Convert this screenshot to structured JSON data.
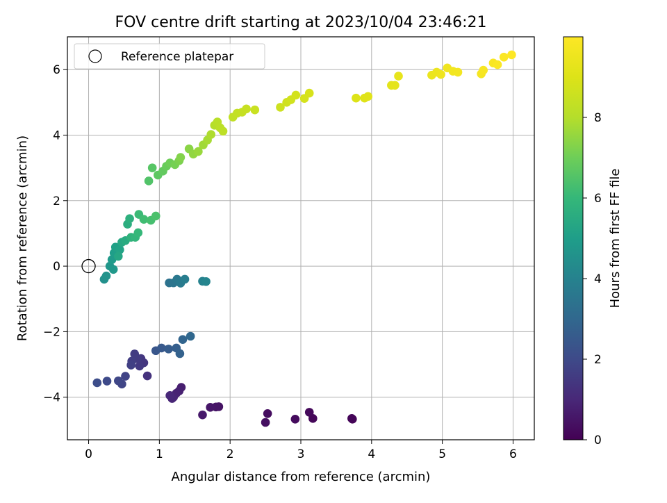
{
  "chart_data": {
    "type": "scatter",
    "title": "FOV centre drift starting at 2023/10/04 23:46:21",
    "xlabel": "Angular distance from reference (arcmin)",
    "ylabel": "Rotation from reference (arcmin)",
    "xlim": [
      -0.3,
      6.3
    ],
    "ylim": [
      -5.3,
      7.0
    ],
    "xticks": [
      0,
      1,
      2,
      3,
      4,
      5,
      6
    ],
    "xtick_labels": [
      "0",
      "1",
      "2",
      "3",
      "4",
      "5",
      "6"
    ],
    "yticks": [
      -4,
      -2,
      0,
      2,
      4,
      6
    ],
    "ytick_labels": [
      "−4",
      "−2",
      "0",
      "2",
      "4",
      "6"
    ],
    "grid": true,
    "legend": {
      "position": "top-left",
      "entries": [
        "Reference platepar"
      ]
    },
    "reference_point": {
      "x": 0,
      "y": 0,
      "marker": "open-circle"
    },
    "colorbar": {
      "label": "Hours from first FF file",
      "colormap": "viridis",
      "range": [
        0,
        10
      ],
      "ticks": [
        0,
        2,
        4,
        6,
        8
      ],
      "tick_labels": [
        "0",
        "2",
        "4",
        "6",
        "8"
      ]
    },
    "series": [
      {
        "points": [
          [
            3.73,
            -4.67,
            0.05
          ],
          [
            3.72,
            -4.65,
            0.1
          ],
          [
            3.17,
            -4.65,
            0.15
          ],
          [
            3.12,
            -4.46,
            0.2
          ],
          [
            2.92,
            -4.67,
            0.25
          ],
          [
            2.53,
            -4.5,
            0.3
          ],
          [
            2.5,
            -4.77,
            0.35
          ],
          [
            1.84,
            -4.29,
            0.45
          ],
          [
            1.8,
            -4.3,
            0.5
          ],
          [
            1.72,
            -4.31,
            0.55
          ],
          [
            1.61,
            -4.54,
            0.6
          ],
          [
            1.31,
            -3.7,
            0.75
          ],
          [
            1.28,
            -3.81,
            0.8
          ],
          [
            1.24,
            -3.88,
            0.85
          ],
          [
            1.2,
            -4.0,
            0.9
          ],
          [
            1.18,
            -4.04,
            0.95
          ],
          [
            1.15,
            -3.95,
            1.0
          ],
          [
            0.83,
            -3.35,
            1.3
          ],
          [
            0.78,
            -2.95,
            1.4
          ],
          [
            0.74,
            -2.82,
            1.45
          ],
          [
            0.72,
            -3.05,
            1.5
          ],
          [
            0.69,
            -2.82,
            1.55
          ],
          [
            0.65,
            -2.68,
            1.6
          ],
          [
            0.61,
            -2.9,
            1.65
          ],
          [
            0.6,
            -3.02,
            1.7
          ],
          [
            0.52,
            -3.36,
            1.8
          ],
          [
            0.47,
            -3.6,
            1.85
          ],
          [
            0.42,
            -3.5,
            1.9
          ],
          [
            0.26,
            -3.51,
            2.0
          ],
          [
            0.12,
            -3.56,
            2.1
          ],
          [
            0.95,
            -2.58,
            2.4
          ],
          [
            1.03,
            -2.5,
            2.5
          ],
          [
            1.13,
            -2.53,
            2.6
          ],
          [
            1.24,
            -2.5,
            2.7
          ],
          [
            1.29,
            -2.67,
            2.8
          ],
          [
            1.33,
            -2.24,
            2.9
          ],
          [
            1.44,
            -2.14,
            3.0
          ],
          [
            1.14,
            -0.51,
            3.4
          ],
          [
            1.2,
            -0.51,
            3.5
          ],
          [
            1.25,
            -0.4,
            3.6
          ],
          [
            1.3,
            -0.52,
            3.7
          ],
          [
            1.36,
            -0.4,
            3.8
          ],
          [
            1.61,
            -0.46,
            4.0
          ],
          [
            1.66,
            -0.47,
            4.1
          ],
          [
            0.22,
            -0.4,
            4.5
          ],
          [
            0.25,
            -0.3,
            4.6
          ],
          [
            0.3,
            0.0,
            4.7
          ],
          [
            0.35,
            -0.1,
            4.8
          ],
          [
            0.33,
            0.2,
            4.9
          ],
          [
            0.36,
            0.4,
            5.0
          ],
          [
            0.38,
            0.58,
            5.1
          ],
          [
            0.44,
            0.5,
            5.2
          ],
          [
            0.42,
            0.3,
            5.3
          ],
          [
            0.47,
            0.73,
            5.4
          ],
          [
            0.52,
            0.78,
            5.5
          ],
          [
            0.55,
            1.28,
            5.6
          ],
          [
            0.58,
            1.45,
            5.7
          ],
          [
            0.6,
            0.88,
            5.8
          ],
          [
            0.66,
            0.88,
            5.9
          ],
          [
            0.7,
            1.02,
            6.0
          ],
          [
            0.71,
            1.58,
            6.1
          ],
          [
            0.78,
            1.43,
            6.2
          ],
          [
            0.88,
            1.4,
            6.3
          ],
          [
            0.95,
            1.53,
            6.4
          ],
          [
            0.85,
            2.6,
            6.5
          ],
          [
            0.9,
            3.0,
            6.6
          ],
          [
            0.98,
            2.78,
            6.7
          ],
          [
            1.05,
            2.9,
            6.8
          ],
          [
            1.1,
            3.05,
            6.9
          ],
          [
            1.15,
            3.15,
            7.0
          ],
          [
            1.22,
            3.1,
            7.1
          ],
          [
            1.28,
            3.22,
            7.2
          ],
          [
            1.3,
            3.32,
            7.3
          ],
          [
            1.42,
            3.58,
            7.4
          ],
          [
            1.48,
            3.42,
            7.5
          ],
          [
            1.55,
            3.5,
            7.6
          ],
          [
            1.62,
            3.7,
            7.7
          ],
          [
            1.68,
            3.85,
            7.8
          ],
          [
            1.73,
            4.02,
            7.9
          ],
          [
            1.78,
            4.3,
            8.0
          ],
          [
            1.82,
            4.4,
            8.1
          ],
          [
            1.86,
            4.22,
            8.15
          ],
          [
            1.9,
            4.12,
            8.2
          ],
          [
            2.04,
            4.55,
            8.3
          ],
          [
            2.1,
            4.67,
            8.35
          ],
          [
            2.17,
            4.7,
            8.4
          ],
          [
            2.23,
            4.8,
            8.45
          ],
          [
            2.35,
            4.77,
            8.5
          ],
          [
            2.71,
            4.85,
            8.6
          ],
          [
            2.8,
            5.0,
            8.65
          ],
          [
            2.86,
            5.08,
            8.7
          ],
          [
            2.93,
            5.22,
            8.75
          ],
          [
            3.05,
            5.12,
            8.8
          ],
          [
            3.12,
            5.28,
            8.85
          ],
          [
            3.78,
            5.13,
            9.0
          ],
          [
            3.9,
            5.13,
            9.05
          ],
          [
            3.95,
            5.18,
            9.1
          ],
          [
            4.28,
            5.52,
            9.2
          ],
          [
            4.33,
            5.52,
            9.25
          ],
          [
            4.38,
            5.8,
            9.3
          ],
          [
            4.85,
            5.83,
            9.45
          ],
          [
            4.92,
            5.92,
            9.5
          ],
          [
            4.98,
            5.85,
            9.55
          ],
          [
            5.07,
            6.05,
            9.6
          ],
          [
            5.15,
            5.95,
            9.65
          ],
          [
            5.22,
            5.92,
            9.7
          ],
          [
            5.55,
            5.87,
            9.75
          ],
          [
            5.58,
            5.98,
            9.8
          ],
          [
            5.72,
            6.2,
            9.85
          ],
          [
            5.78,
            6.15,
            9.9
          ],
          [
            5.87,
            6.38,
            9.95
          ],
          [
            5.98,
            6.45,
            10.0
          ]
        ]
      }
    ]
  }
}
